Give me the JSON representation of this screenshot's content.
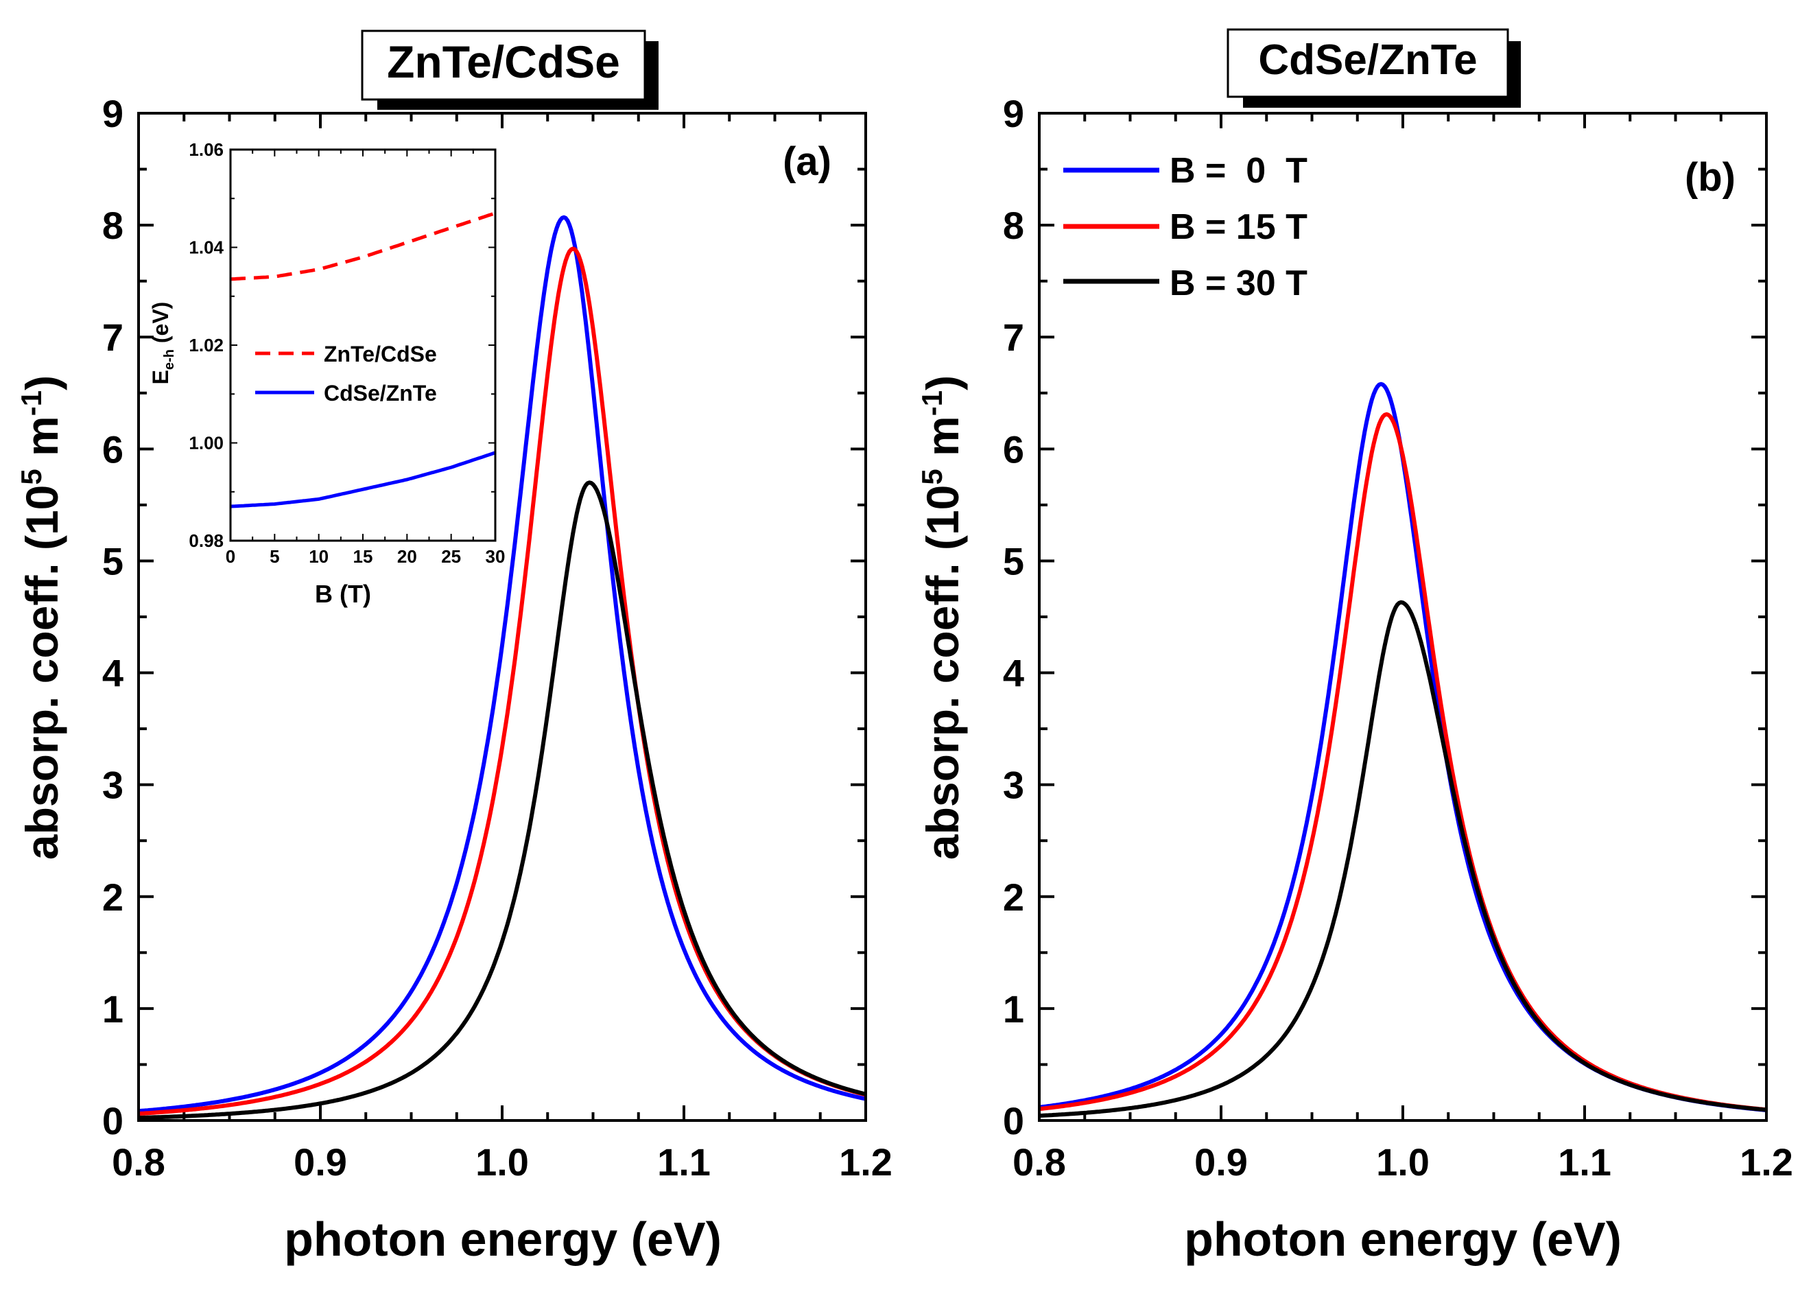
{
  "chart_data": [
    {
      "id": "a",
      "type": "line",
      "title": "ZnTe/CdSe",
      "panel_label": "(a)",
      "xlabel": "photon energy (eV)",
      "ylabel_main": "absorp. coeff. (10",
      "ylabel_sup": "5",
      "ylabel_unit": " m",
      "ylabel_unit_sup": "-1",
      "ylabel_close": ")",
      "xlim": [
        0.8,
        1.2
      ],
      "ylim": [
        0,
        9
      ],
      "xticks": [
        "0.8",
        "0.9",
        "1.0",
        "1.1",
        "1.2"
      ],
      "yticks": [
        "0",
        "1",
        "2",
        "3",
        "4",
        "5",
        "6",
        "7",
        "8",
        "9"
      ],
      "series": [
        {
          "name": "B = 0 T",
          "color": "#0000ff",
          "peak_x": 1.034,
          "peak_y": 8.07,
          "gamma_left": 0.0365,
          "gamma_right": 0.0335
        },
        {
          "name": "B = 15 T",
          "color": "#ff0000",
          "peak_x": 1.039,
          "peak_y": 7.79,
          "gamma_left": 0.0345,
          "gamma_right": 0.035
        },
        {
          "name": "B = 30 T",
          "color": "#000000",
          "peak_x": 1.048,
          "peak_y": 5.7,
          "gamma_left": 0.031,
          "gamma_right": 0.0375
        }
      ],
      "inset": {
        "xlabel": "B (T)",
        "ylabel_main": "E",
        "ylabel_sub": "e-h",
        "ylabel_rest": " (eV)",
        "xlim": [
          0,
          30
        ],
        "ylim": [
          0.98,
          1.06
        ],
        "xticks": [
          "0",
          "5",
          "10",
          "15",
          "20",
          "25",
          "30"
        ],
        "yticks": [
          "0.98",
          "1.00",
          "1.02",
          "1.04",
          "1.06"
        ],
        "series": [
          {
            "name": "ZnTe/CdSe",
            "color": "#ff0000",
            "style": "dashed",
            "x": [
              0,
              5,
              10,
              15,
              20,
              25,
              30
            ],
            "y": [
              1.0335,
              1.034,
              1.0355,
              1.038,
              1.041,
              1.044,
              1.047
            ]
          },
          {
            "name": "CdSe/ZnTe",
            "color": "#0000ff",
            "style": "solid",
            "x": [
              0,
              5,
              10,
              15,
              20,
              25,
              30
            ],
            "y": [
              0.987,
              0.9875,
              0.9885,
              0.9905,
              0.9925,
              0.995,
              0.998
            ]
          }
        ]
      }
    },
    {
      "id": "b",
      "type": "line",
      "title": "CdSe/ZnTe",
      "panel_label": "(b)",
      "xlabel": "photon energy (eV)",
      "ylabel_main": "absorp. coeff. (10",
      "ylabel_sup": "5",
      "ylabel_unit": " m",
      "ylabel_unit_sup": "-1",
      "ylabel_close": ")",
      "xlim": [
        0.8,
        1.2
      ],
      "ylim": [
        0,
        9
      ],
      "xticks": [
        "0.8",
        "0.9",
        "1.0",
        "1.1",
        "1.2"
      ],
      "yticks": [
        "0",
        "1",
        "2",
        "3",
        "4",
        "5",
        "6",
        "7",
        "8",
        "9"
      ],
      "legend": [
        "B =  0  T",
        "B = 15 T",
        "B = 30 T"
      ],
      "series": [
        {
          "name": "B = 0 T",
          "color": "#0000ff",
          "peak_x": 0.988,
          "peak_y": 6.58,
          "gamma_left": 0.0345,
          "gamma_right": 0.036
        },
        {
          "name": "B = 15 T",
          "color": "#ff0000",
          "peak_x": 0.991,
          "peak_y": 6.31,
          "gamma_left": 0.034,
          "gamma_right": 0.0365
        },
        {
          "name": "B = 30 T",
          "color": "#000000",
          "peak_x": 0.999,
          "peak_y": 4.63,
          "gamma_left": 0.03,
          "gamma_right": 0.0385
        }
      ]
    }
  ]
}
